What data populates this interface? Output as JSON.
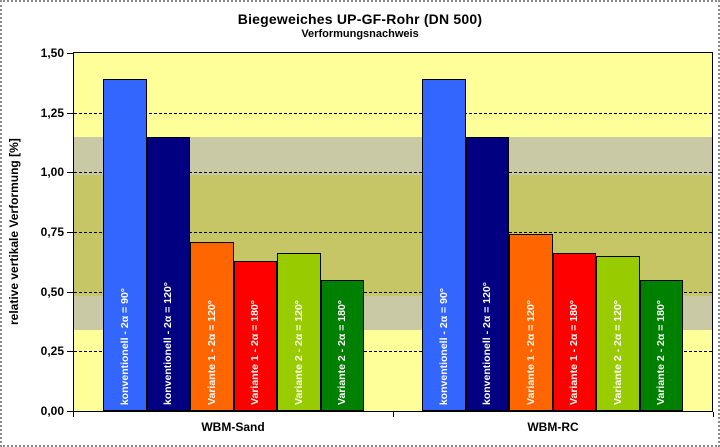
{
  "title": "Biegeweiches UP-GF-Rohr (DN 500)",
  "subtitle": "Verformungsnachweis",
  "y_axis": {
    "label": "relative vertikale Verformung [%]",
    "tick_labels": [
      "0,00",
      "0,25",
      "0,50",
      "0,75",
      "1,00",
      "1,25",
      "1,50"
    ]
  },
  "chart_data": {
    "type": "bar",
    "title": "Biegeweiches UP-GF-Rohr (DN 500)",
    "subtitle": "Verformungsnachweis",
    "xlabel": "",
    "ylabel": "relative vertikale Verformung [%]",
    "ylim": [
      0,
      1.5
    ],
    "ytick_step": 0.25,
    "grid": "dashed horizontal gridlines",
    "legend": "none (labels printed inside bars)",
    "plot_background": "#FFFF99",
    "categories": [
      "WBM-Sand",
      "WBM-RC"
    ],
    "series": [
      {
        "name": "konventionell - 2α = 90°",
        "color": "#3366FF",
        "values": [
          1.39,
          1.39
        ]
      },
      {
        "name": "konventionell - 2α = 120°",
        "color": "#000080",
        "values": [
          1.15,
          1.15
        ]
      },
      {
        "name": "Variante 1 - 2α = 120°",
        "color": "#FF6600",
        "values": [
          0.71,
          0.74
        ]
      },
      {
        "name": "Variante 1 - 2α = 180°",
        "color": "#FF0000",
        "values": [
          0.63,
          0.66
        ]
      },
      {
        "name": "Variante 2 - 2α = 120°",
        "color": "#99CC00",
        "values": [
          0.66,
          0.65
        ]
      },
      {
        "name": "Variante 2 - 2α = 180°",
        "color": "#008000",
        "values": [
          0.55,
          0.55
        ]
      }
    ],
    "bands": [
      {
        "from": 0.34,
        "to": 1.15,
        "color": "#C9C9A6"
      },
      {
        "from": 0.48,
        "to": 0.99,
        "color": "#C6C667"
      }
    ]
  }
}
